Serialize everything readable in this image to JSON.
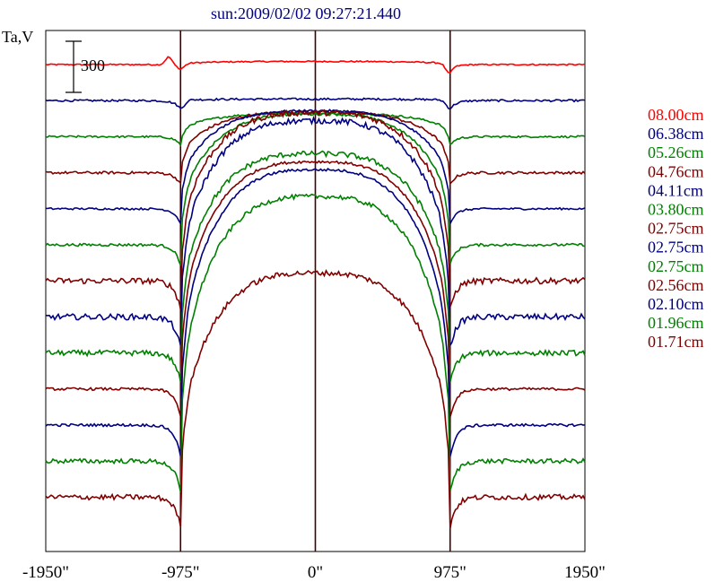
{
  "chart_data": {
    "type": "line",
    "title": "sun:2009/02/02 09:27:21.440",
    "ylabel": "Ta,V",
    "xlabel": "",
    "x_ticks": [
      {
        "value": -1950,
        "label": "-1950\""
      },
      {
        "value": -975,
        "label": "-975\""
      },
      {
        "value": 0,
        "label": "0\""
      },
      {
        "value": 975,
        "label": "975\""
      },
      {
        "value": 1950,
        "label": "1950\""
      }
    ],
    "xlim": [
      -1950,
      1950
    ],
    "vertical_lines": [
      -975,
      0,
      975
    ],
    "scale_bar": {
      "label": "300",
      "value": 300
    },
    "legend_position": "right",
    "grid": false,
    "series_note_units": "Ta relative, each trace offset vertically",
    "series": [
      {
        "name": "08.00cm",
        "color": "#ff0000",
        "baseline": 0,
        "disk": 10,
        "limb_dip": 15,
        "edge_bump": 25,
        "noise": 2
      },
      {
        "name": "06.38cm",
        "color": "#000080",
        "baseline": -110,
        "disk": 5,
        "limb_dip": 25,
        "edge_bump": 0,
        "noise": 3
      },
      {
        "name": "05.26cm",
        "color": "#008000",
        "baseline": -220,
        "disk": 75,
        "limb_dip": 25,
        "edge_bump": 0,
        "noise": 3
      },
      {
        "name": "04.76cm",
        "color": "#800000",
        "baseline": -330,
        "disk": 195,
        "limb_dip": 35,
        "edge_bump": 0,
        "noise": 4
      },
      {
        "name": "04.11cm",
        "color": "#000080",
        "baseline": -440,
        "disk": 315,
        "limb_dip": 45,
        "edge_bump": 0,
        "noise": 3
      },
      {
        "name": "03.80cm",
        "color": "#008000",
        "baseline": -550,
        "disk": 420,
        "limb_dip": 60,
        "edge_bump": 0,
        "noise": 4
      },
      {
        "name": "02.75cm",
        "color": "#800000",
        "baseline": -660,
        "disk": 540,
        "limb_dip": 85,
        "edge_bump": 0,
        "noise": 9
      },
      {
        "name": "02.75cm",
        "color": "#000080",
        "baseline": -770,
        "disk": 630,
        "limb_dip": 95,
        "edge_bump": 0,
        "noise": 9
      },
      {
        "name": "02.75cm",
        "color": "#008000",
        "baseline": -880,
        "disk": 640,
        "limb_dip": 90,
        "edge_bump": 0,
        "noise": 8
      },
      {
        "name": "02.56cm",
        "color": "#800000",
        "baseline": -990,
        "disk": 730,
        "limb_dip": 85,
        "edge_bump": 0,
        "noise": 4
      },
      {
        "name": "02.10cm",
        "color": "#000080",
        "baseline": -1100,
        "disk": 820,
        "limb_dip": 95,
        "edge_bump": 0,
        "noise": 4
      },
      {
        "name": "01.96cm",
        "color": "#008000",
        "baseline": -1210,
        "disk": 850,
        "limb_dip": 95,
        "edge_bump": 0,
        "noise": 7
      },
      {
        "name": "01.71cm",
        "color": "#800000",
        "baseline": -1320,
        "disk": 720,
        "limb_dip": 90,
        "edge_bump": 0,
        "noise": 8
      }
    ]
  }
}
